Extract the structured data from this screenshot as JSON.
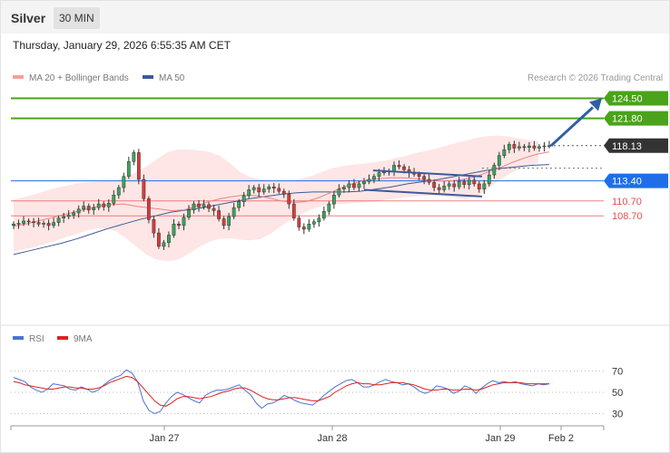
{
  "header": {
    "instrument": "Silver",
    "timeframe": "30 MIN",
    "datetime": "Thursday, January 29, 2026 6:55:35 AM CET"
  },
  "legend": {
    "ma20_bb": "MA 20 + Bollinger Bands",
    "ma50": "MA 50",
    "copyright": "Research © 2026 Trading Central"
  },
  "rsi_legend": {
    "rsi": "RSI",
    "ma9": "9MA"
  },
  "colors": {
    "green_level": "#4aa31a",
    "blue_level": "#1f6ee8",
    "red_level": "#e05050",
    "price_tag": "#333333",
    "ma50": "#3d5a99",
    "bollinger_fill": "#fde2e0",
    "ma20": "#f08080",
    "arrow": "#2f5ea8",
    "rsi_line": "#4a74d4",
    "rsi_ma": "#e02020"
  },
  "chart_data": [
    {
      "type": "candlestick",
      "title": "Silver",
      "timeframe": "30 MIN",
      "x_ticks": [
        "Jan 27",
        "Jan 28",
        "Jan 29",
        "Feb 2"
      ],
      "levels": [
        {
          "value": 124.5,
          "label": "124.50",
          "kind": "resistance",
          "color": "#4aa31a"
        },
        {
          "value": 121.8,
          "label": "121.80",
          "kind": "resistance",
          "color": "#4aa31a"
        },
        {
          "value": 118.13,
          "label": "118.13",
          "kind": "last-price",
          "color": "#333333"
        },
        {
          "value": 113.4,
          "label": "113.40",
          "kind": "pivot",
          "color": "#1f6ee8"
        },
        {
          "value": 110.7,
          "label": "110.70",
          "kind": "support",
          "color": "#e05050"
        },
        {
          "value": 108.7,
          "label": "108.70",
          "kind": "support",
          "color": "#e05050"
        }
      ],
      "candles_close": [
        107.6,
        107.7,
        108.0,
        107.9,
        107.8,
        107.6,
        107.7,
        107.4,
        107.8,
        108.4,
        108.6,
        108.8,
        109.1,
        109.6,
        110.0,
        109.5,
        109.8,
        110.3,
        109.9,
        110.4,
        111.5,
        112.5,
        114.0,
        116.0,
        117.2,
        113.6,
        111.0,
        108.2,
        106.4,
        104.6,
        105.1,
        106.1,
        107.6,
        107.4,
        108.5,
        109.5,
        110.3,
        109.9,
        110.2,
        109.7,
        109.4,
        108.3,
        107.4,
        108.6,
        109.8,
        110.6,
        111.4,
        112.2,
        112.5,
        111.9,
        112.3,
        112.6,
        112.4,
        112.0,
        111.6,
        110.3,
        108.4,
        107.2,
        106.9,
        107.6,
        107.9,
        108.4,
        109.3,
        110.3,
        111.5,
        112.3,
        112.5,
        113.0,
        112.5,
        113.0,
        113.3,
        113.6,
        114.0,
        114.5,
        114.6,
        114.7,
        115.5,
        115.3,
        114.9,
        114.5,
        114.3,
        114.0,
        113.6,
        113.2,
        112.5,
        112.2,
        112.7,
        113.0,
        112.6,
        113.3,
        112.9,
        113.5,
        113.0,
        112.3,
        113.0,
        114.2,
        115.5,
        116.8,
        117.6,
        118.3,
        117.8,
        118.0,
        117.9,
        118.1,
        117.8,
        118.0,
        118.1,
        118.13
      ],
      "bollinger": {
        "upper": [
          110.9,
          111.2,
          111.6,
          112.0,
          112.4,
          112.7,
          113.0,
          113.2,
          113.3,
          113.4,
          113.5,
          114.0,
          114.6,
          115.4,
          116.4,
          117.3,
          117.6,
          117.6,
          117.5,
          117.3,
          116.8,
          115.8,
          114.6,
          113.9,
          113.6,
          113.5,
          113.4,
          113.4,
          113.7,
          114.1,
          114.6,
          115.1,
          115.4,
          115.6,
          115.7,
          115.9,
          116.1,
          116.4,
          116.7,
          117.1,
          117.4,
          117.7,
          118.1,
          118.5,
          118.8,
          119.2,
          119.4,
          119.5,
          119.4,
          119.1,
          118.9,
          118.7
        ],
        "lower": [
          103.9,
          104.2,
          104.5,
          104.9,
          105.3,
          105.8,
          106.2,
          106.7,
          107.0,
          107.0,
          106.6,
          105.6,
          104.5,
          103.4,
          102.8,
          102.6,
          102.8,
          103.6,
          104.5,
          105.2,
          105.6,
          105.7,
          105.5,
          105.4,
          105.6,
          106.3,
          107.3,
          108.2,
          109.0,
          109.6,
          110.0,
          110.2,
          110.3,
          110.4,
          110.5,
          110.6,
          110.8,
          111.0,
          111.2,
          111.3,
          111.4,
          111.4,
          111.3,
          111.1,
          111.0,
          111.3,
          112.2,
          113.3,
          114.2,
          114.9,
          115.4,
          115.8
        ]
      },
      "ma20": [
        107.3,
        107.6,
        108.0,
        108.4,
        108.8,
        109.2,
        109.6,
        110.0,
        110.2,
        110.3,
        110.0,
        109.8,
        109.6,
        109.4,
        109.5,
        110.0,
        110.6,
        111.0,
        111.3,
        111.5,
        111.4,
        111.1,
        110.7,
        110.5,
        110.6,
        111.1,
        111.8,
        112.5,
        113.1,
        113.5,
        113.7,
        113.8,
        113.8,
        113.7,
        113.5,
        113.4,
        113.4,
        113.6,
        114.0,
        114.6,
        115.2,
        115.9,
        116.5,
        117.0,
        117.3
      ],
      "ma50": [
        103.5,
        104.0,
        104.5,
        105.0,
        105.6,
        106.3,
        107.0,
        107.6,
        108.2,
        108.7,
        109.2,
        109.5,
        109.8,
        110.2,
        110.6,
        111.0,
        111.3,
        111.6,
        111.8,
        111.9,
        111.9,
        111.9,
        112.0,
        112.3,
        112.6,
        113.0,
        113.3,
        113.6,
        114.0,
        114.4,
        114.8,
        115.1,
        115.3,
        115.5,
        115.6
      ],
      "annotations": [
        {
          "type": "descending-channel-upper",
          "from": 114.8,
          "to": 114.0
        },
        {
          "type": "descending-channel-lower",
          "from": 112.2,
          "to": 111.3
        },
        {
          "type": "arrow-target",
          "from": 118.13,
          "to": 124.5
        }
      ],
      "legend": [
        "MA 20 + Bollinger Bands",
        "MA 50"
      ]
    },
    {
      "type": "line",
      "series_names": [
        "RSI",
        "9MA"
      ],
      "y_ticks": [
        70,
        50,
        30
      ],
      "ylim": [
        30,
        70
      ],
      "rsi": [
        64,
        62,
        60,
        55,
        52,
        50,
        53,
        58,
        57,
        56,
        53,
        52,
        55,
        53,
        50,
        52,
        57,
        61,
        64,
        66,
        71,
        68,
        60,
        42,
        33,
        30,
        32,
        40,
        46,
        50,
        48,
        45,
        42,
        40,
        47,
        50,
        52,
        52,
        53,
        55,
        57,
        52,
        48,
        40,
        35,
        39,
        40,
        43,
        47,
        45,
        42,
        40,
        39,
        38,
        42,
        47,
        51,
        55,
        58,
        61,
        62,
        59,
        55,
        55,
        57,
        60,
        62,
        60,
        59,
        57,
        58,
        55,
        51,
        49,
        51,
        56,
        55,
        53,
        49,
        51,
        56,
        54,
        49,
        54,
        58,
        61,
        59,
        60,
        59,
        60,
        58,
        57,
        56,
        58,
        57,
        58
      ],
      "rsi_ma": [
        60,
        59,
        57,
        56,
        55,
        54,
        53,
        53,
        54,
        55,
        55,
        54,
        54,
        53,
        53,
        54,
        56,
        59,
        61,
        63,
        65,
        64,
        60,
        54,
        48,
        42,
        38,
        37,
        40,
        44,
        46,
        46,
        45,
        44,
        45,
        46,
        48,
        50,
        51,
        53,
        54,
        54,
        52,
        49,
        46,
        44,
        43,
        43,
        44,
        45,
        45,
        44,
        43,
        42,
        42,
        44,
        46,
        50,
        53,
        56,
        58,
        59,
        58,
        58,
        57,
        57,
        58,
        59,
        59,
        59,
        58,
        57,
        55,
        53,
        52,
        52,
        53,
        53,
        52,
        52,
        53,
        53,
        52,
        53,
        55,
        57,
        58,
        59,
        59,
        59,
        59,
        58,
        58,
        58,
        58,
        58
      ]
    }
  ]
}
